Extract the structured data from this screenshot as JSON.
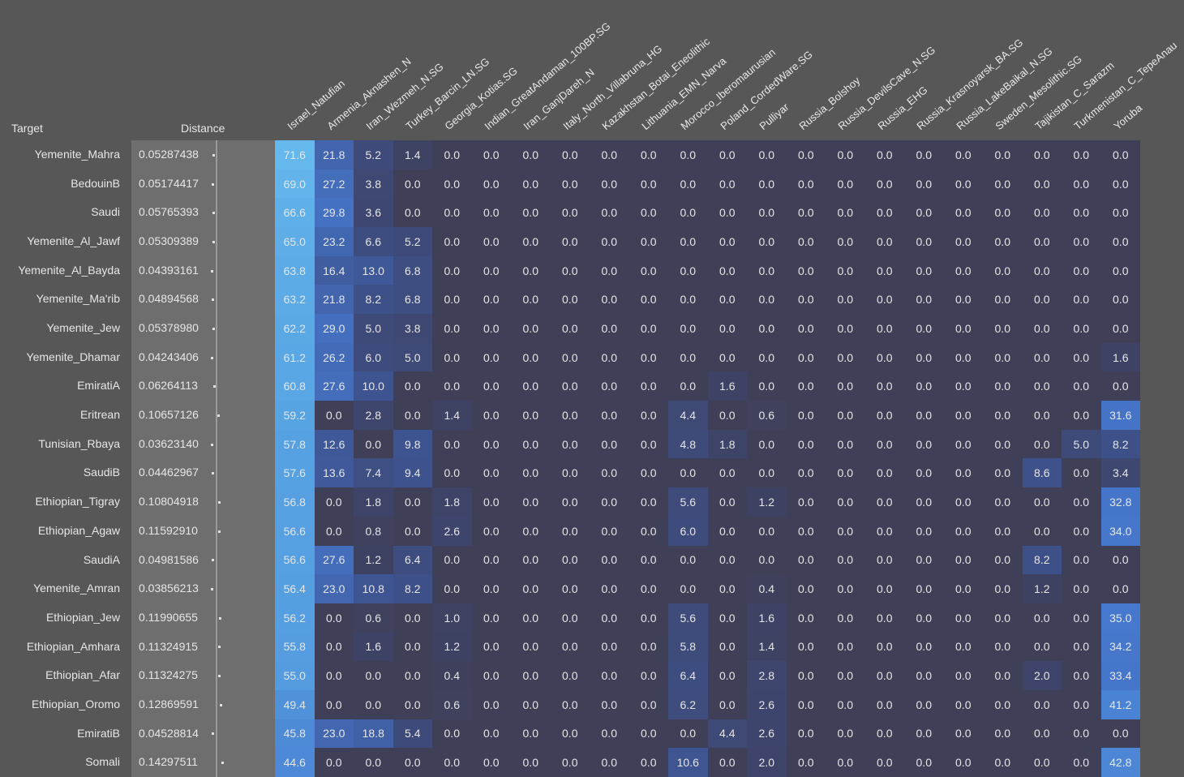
{
  "table": {
    "header": {
      "target": "Target",
      "distance": "Distance"
    },
    "columns": [
      "Israel_Natufian",
      "Armenia_Aknashen_N",
      "Iran_Wezmeh_N.SG",
      "Turkey_Barcin_LN.SG",
      "Georgia_Kotias.SG",
      "Indian_GreatAndaman_100BP.SG",
      "Iran_GanjDareh_N",
      "Italy_North_Villabruna_HG",
      "Kazakhstan_Botai_Eneolithic",
      "Lithuania_EMN_Narva",
      "Morocco_Iberomaurusian",
      "Poland_CordedWare.SG",
      "Pulliyar",
      "Russia_Bolshoy",
      "Russia_DevilsCave_N.SG",
      "Russia_EHG",
      "Russia_Krasnoyarsk_BA.SG",
      "Russia_LakeBaikal_N.SG",
      "Sweden_Mesolithic.SG",
      "Tajikistan_C_Sarazm",
      "Turkmenistan_C_TepeAnau",
      "Yoruba"
    ],
    "rows": [
      {
        "target": "Yemenite_Mahra",
        "distance": "0.05287438",
        "values": [
          "71.6",
          "21.8",
          "5.2",
          "1.4",
          "0.0",
          "0.0",
          "0.0",
          "0.0",
          "0.0",
          "0.0",
          "0.0",
          "0.0",
          "0.0",
          "0.0",
          "0.0",
          "0.0",
          "0.0",
          "0.0",
          "0.0",
          "0.0",
          "0.0",
          "0.0"
        ]
      },
      {
        "target": "BedouinB",
        "distance": "0.05174417",
        "values": [
          "69.0",
          "27.2",
          "3.8",
          "0.0",
          "0.0",
          "0.0",
          "0.0",
          "0.0",
          "0.0",
          "0.0",
          "0.0",
          "0.0",
          "0.0",
          "0.0",
          "0.0",
          "0.0",
          "0.0",
          "0.0",
          "0.0",
          "0.0",
          "0.0",
          "0.0"
        ]
      },
      {
        "target": "Saudi",
        "distance": "0.05765393",
        "values": [
          "66.6",
          "29.8",
          "3.6",
          "0.0",
          "0.0",
          "0.0",
          "0.0",
          "0.0",
          "0.0",
          "0.0",
          "0.0",
          "0.0",
          "0.0",
          "0.0",
          "0.0",
          "0.0",
          "0.0",
          "0.0",
          "0.0",
          "0.0",
          "0.0",
          "0.0"
        ]
      },
      {
        "target": "Yemenite_Al_Jawf",
        "distance": "0.05309389",
        "values": [
          "65.0",
          "23.2",
          "6.6",
          "5.2",
          "0.0",
          "0.0",
          "0.0",
          "0.0",
          "0.0",
          "0.0",
          "0.0",
          "0.0",
          "0.0",
          "0.0",
          "0.0",
          "0.0",
          "0.0",
          "0.0",
          "0.0",
          "0.0",
          "0.0",
          "0.0"
        ]
      },
      {
        "target": "Yemenite_Al_Bayda",
        "distance": "0.04393161",
        "values": [
          "63.8",
          "16.4",
          "13.0",
          "6.8",
          "0.0",
          "0.0",
          "0.0",
          "0.0",
          "0.0",
          "0.0",
          "0.0",
          "0.0",
          "0.0",
          "0.0",
          "0.0",
          "0.0",
          "0.0",
          "0.0",
          "0.0",
          "0.0",
          "0.0",
          "0.0"
        ]
      },
      {
        "target": "Yemenite_Ma'rib",
        "distance": "0.04894568",
        "values": [
          "63.2",
          "21.8",
          "8.2",
          "6.8",
          "0.0",
          "0.0",
          "0.0",
          "0.0",
          "0.0",
          "0.0",
          "0.0",
          "0.0",
          "0.0",
          "0.0",
          "0.0",
          "0.0",
          "0.0",
          "0.0",
          "0.0",
          "0.0",
          "0.0",
          "0.0"
        ]
      },
      {
        "target": "Yemenite_Jew",
        "distance": "0.05378980",
        "values": [
          "62.2",
          "29.0",
          "5.0",
          "3.8",
          "0.0",
          "0.0",
          "0.0",
          "0.0",
          "0.0",
          "0.0",
          "0.0",
          "0.0",
          "0.0",
          "0.0",
          "0.0",
          "0.0",
          "0.0",
          "0.0",
          "0.0",
          "0.0",
          "0.0",
          "0.0"
        ]
      },
      {
        "target": "Yemenite_Dhamar",
        "distance": "0.04243406",
        "values": [
          "61.2",
          "26.2",
          "6.0",
          "5.0",
          "0.0",
          "0.0",
          "0.0",
          "0.0",
          "0.0",
          "0.0",
          "0.0",
          "0.0",
          "0.0",
          "0.0",
          "0.0",
          "0.0",
          "0.0",
          "0.0",
          "0.0",
          "0.0",
          "0.0",
          "1.6"
        ]
      },
      {
        "target": "EmiratiA",
        "distance": "0.06264113",
        "values": [
          "60.8",
          "27.6",
          "10.0",
          "0.0",
          "0.0",
          "0.0",
          "0.0",
          "0.0",
          "0.0",
          "0.0",
          "0.0",
          "1.6",
          "0.0",
          "0.0",
          "0.0",
          "0.0",
          "0.0",
          "0.0",
          "0.0",
          "0.0",
          "0.0",
          "0.0"
        ]
      },
      {
        "target": "Eritrean",
        "distance": "0.10657126",
        "values": [
          "59.2",
          "0.0",
          "2.8",
          "0.0",
          "1.4",
          "0.0",
          "0.0",
          "0.0",
          "0.0",
          "0.0",
          "4.4",
          "0.0",
          "0.6",
          "0.0",
          "0.0",
          "0.0",
          "0.0",
          "0.0",
          "0.0",
          "0.0",
          "0.0",
          "31.6"
        ]
      },
      {
        "target": "Tunisian_Rbaya",
        "distance": "0.03623140",
        "values": [
          "57.8",
          "12.6",
          "0.0",
          "9.8",
          "0.0",
          "0.0",
          "0.0",
          "0.0",
          "0.0",
          "0.0",
          "4.8",
          "1.8",
          "0.0",
          "0.0",
          "0.0",
          "0.0",
          "0.0",
          "0.0",
          "0.0",
          "0.0",
          "5.0",
          "8.2"
        ]
      },
      {
        "target": "SaudiB",
        "distance": "0.04462967",
        "values": [
          "57.6",
          "13.6",
          "7.4",
          "9.4",
          "0.0",
          "0.0",
          "0.0",
          "0.0",
          "0.0",
          "0.0",
          "0.0",
          "0.0",
          "0.0",
          "0.0",
          "0.0",
          "0.0",
          "0.0",
          "0.0",
          "0.0",
          "8.6",
          "0.0",
          "3.4"
        ]
      },
      {
        "target": "Ethiopian_Tigray",
        "distance": "0.10804918",
        "values": [
          "56.8",
          "0.0",
          "1.8",
          "0.0",
          "1.8",
          "0.0",
          "0.0",
          "0.0",
          "0.0",
          "0.0",
          "5.6",
          "0.0",
          "1.2",
          "0.0",
          "0.0",
          "0.0",
          "0.0",
          "0.0",
          "0.0",
          "0.0",
          "0.0",
          "32.8"
        ]
      },
      {
        "target": "Ethiopian_Agaw",
        "distance": "0.11592910",
        "values": [
          "56.6",
          "0.0",
          "0.8",
          "0.0",
          "2.6",
          "0.0",
          "0.0",
          "0.0",
          "0.0",
          "0.0",
          "6.0",
          "0.0",
          "0.0",
          "0.0",
          "0.0",
          "0.0",
          "0.0",
          "0.0",
          "0.0",
          "0.0",
          "0.0",
          "34.0"
        ]
      },
      {
        "target": "SaudiA",
        "distance": "0.04981586",
        "values": [
          "56.6",
          "27.6",
          "1.2",
          "6.4",
          "0.0",
          "0.0",
          "0.0",
          "0.0",
          "0.0",
          "0.0",
          "0.0",
          "0.0",
          "0.0",
          "0.0",
          "0.0",
          "0.0",
          "0.0",
          "0.0",
          "0.0",
          "8.2",
          "0.0",
          "0.0"
        ]
      },
      {
        "target": "Yemenite_Amran",
        "distance": "0.03856213",
        "values": [
          "56.4",
          "23.0",
          "10.8",
          "8.2",
          "0.0",
          "0.0",
          "0.0",
          "0.0",
          "0.0",
          "0.0",
          "0.0",
          "0.0",
          "0.4",
          "0.0",
          "0.0",
          "0.0",
          "0.0",
          "0.0",
          "0.0",
          "1.2",
          "0.0",
          "0.0"
        ]
      },
      {
        "target": "Ethiopian_Jew",
        "distance": "0.11990655",
        "values": [
          "56.2",
          "0.0",
          "0.6",
          "0.0",
          "1.0",
          "0.0",
          "0.0",
          "0.0",
          "0.0",
          "0.0",
          "5.6",
          "0.0",
          "1.6",
          "0.0",
          "0.0",
          "0.0",
          "0.0",
          "0.0",
          "0.0",
          "0.0",
          "0.0",
          "35.0"
        ]
      },
      {
        "target": "Ethiopian_Amhara",
        "distance": "0.11324915",
        "values": [
          "55.8",
          "0.0",
          "1.6",
          "0.0",
          "1.2",
          "0.0",
          "0.0",
          "0.0",
          "0.0",
          "0.0",
          "5.8",
          "0.0",
          "1.4",
          "0.0",
          "0.0",
          "0.0",
          "0.0",
          "0.0",
          "0.0",
          "0.0",
          "0.0",
          "34.2"
        ]
      },
      {
        "target": "Ethiopian_Afar",
        "distance": "0.11324275",
        "values": [
          "55.0",
          "0.0",
          "0.0",
          "0.0",
          "0.4",
          "0.0",
          "0.0",
          "0.0",
          "0.0",
          "0.0",
          "6.4",
          "0.0",
          "2.8",
          "0.0",
          "0.0",
          "0.0",
          "0.0",
          "0.0",
          "0.0",
          "2.0",
          "0.0",
          "33.4"
        ]
      },
      {
        "target": "Ethiopian_Oromo",
        "distance": "0.12869591",
        "values": [
          "49.4",
          "0.0",
          "0.0",
          "0.0",
          "0.6",
          "0.0",
          "0.0",
          "0.0",
          "0.0",
          "0.0",
          "6.2",
          "0.0",
          "2.6",
          "0.0",
          "0.0",
          "0.0",
          "0.0",
          "0.0",
          "0.0",
          "0.0",
          "0.0",
          "41.2"
        ]
      },
      {
        "target": "EmiratiB",
        "distance": "0.04528814",
        "values": [
          "45.8",
          "23.0",
          "18.8",
          "5.4",
          "0.0",
          "0.0",
          "0.0",
          "0.0",
          "0.0",
          "0.0",
          "0.0",
          "4.4",
          "2.6",
          "0.0",
          "0.0",
          "0.0",
          "0.0",
          "0.0",
          "0.0",
          "0.0",
          "0.0",
          "0.0"
        ]
      },
      {
        "target": "Somali",
        "distance": "0.14297511",
        "values": [
          "44.6",
          "0.0",
          "0.0",
          "0.0",
          "0.0",
          "0.0",
          "0.0",
          "0.0",
          "0.0",
          "0.0",
          "10.6",
          "0.0",
          "2.0",
          "0.0",
          "0.0",
          "0.0",
          "0.0",
          "0.0",
          "0.0",
          "0.0",
          "0.0",
          "42.8"
        ]
      }
    ]
  }
}
